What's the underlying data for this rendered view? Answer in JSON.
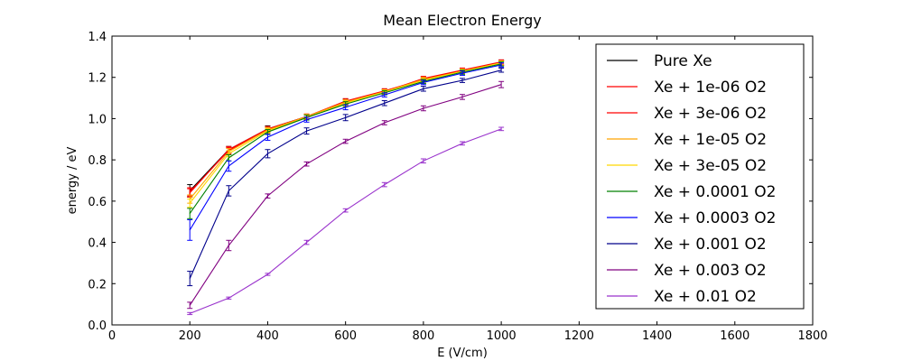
{
  "chart_data": {
    "type": "line",
    "title": "Mean Electron Energy",
    "xlabel": "E (V/cm)",
    "ylabel": "energy / eV",
    "xlim": [
      0,
      1800
    ],
    "ylim": [
      0.0,
      1.4
    ],
    "xticks": [
      "0",
      "200",
      "400",
      "600",
      "800",
      "1000",
      "1200",
      "1400",
      "1600",
      "1800"
    ],
    "yticks": [
      "0.0",
      "0.2",
      "0.4",
      "0.6",
      "0.8",
      "1.0",
      "1.2",
      "1.4"
    ],
    "grid": false,
    "legend_position": "top-right",
    "x": [
      200,
      300,
      400,
      500,
      600,
      700,
      800,
      900,
      1000
    ],
    "series": [
      {
        "name": "Pure Xe",
        "color": "#000000",
        "values": [
          0.65,
          0.85,
          0.95,
          1.01,
          1.08,
          1.13,
          1.19,
          1.23,
          1.27
        ],
        "errors": [
          0.03,
          0.015,
          0.015,
          0.012,
          0.015,
          0.012,
          0.012,
          0.012,
          0.012
        ]
      },
      {
        "name": "Xe + 1e-06 O2",
        "color": "#ff0000",
        "values": [
          0.64,
          0.85,
          0.95,
          1.01,
          1.08,
          1.13,
          1.195,
          1.235,
          1.27
        ],
        "errors": [
          0.02,
          0.015,
          0.012,
          0.012,
          0.012,
          0.01,
          0.01,
          0.01,
          0.01
        ]
      },
      {
        "name": "Xe + 3e-06 O2",
        "color": "#ff0000",
        "values": [
          0.645,
          0.845,
          0.945,
          1.01,
          1.085,
          1.135,
          1.19,
          1.235,
          1.275
        ],
        "errors": [
          0.02,
          0.015,
          0.012,
          0.012,
          0.012,
          0.01,
          0.01,
          0.01,
          0.01
        ]
      },
      {
        "name": "Xe + 1e-05 O2",
        "color": "#ffa500",
        "values": [
          0.61,
          0.84,
          0.945,
          1.01,
          1.08,
          1.13,
          1.19,
          1.23,
          1.27
        ],
        "errors": [
          0.02,
          0.015,
          0.012,
          0.012,
          0.012,
          0.01,
          0.01,
          0.01,
          0.01
        ]
      },
      {
        "name": "Xe + 3e-05 O2",
        "color": "#ffd700",
        "values": [
          0.59,
          0.83,
          0.94,
          1.005,
          1.075,
          1.13,
          1.185,
          1.23,
          1.27
        ],
        "errors": [
          0.02,
          0.015,
          0.012,
          0.012,
          0.012,
          0.01,
          0.01,
          0.01,
          0.01
        ]
      },
      {
        "name": "Xe + 0.0001 O2",
        "color": "#008000",
        "values": [
          0.54,
          0.81,
          0.935,
          1.005,
          1.07,
          1.125,
          1.18,
          1.225,
          1.265
        ],
        "errors": [
          0.025,
          0.015,
          0.012,
          0.012,
          0.012,
          0.01,
          0.01,
          0.01,
          0.01
        ]
      },
      {
        "name": "Xe + 0.0003 O2",
        "color": "#0000ff",
        "values": [
          0.46,
          0.77,
          0.91,
          0.995,
          1.055,
          1.115,
          1.175,
          1.22,
          1.26
        ],
        "errors": [
          0.05,
          0.025,
          0.015,
          0.012,
          0.012,
          0.01,
          0.01,
          0.01,
          0.01
        ]
      },
      {
        "name": "Xe + 0.001 O2",
        "color": "#00008b",
        "values": [
          0.225,
          0.65,
          0.83,
          0.94,
          1.005,
          1.075,
          1.145,
          1.185,
          1.235
        ],
        "errors": [
          0.035,
          0.025,
          0.02,
          0.015,
          0.015,
          0.012,
          0.012,
          0.01,
          0.01
        ]
      },
      {
        "name": "Xe + 0.003 O2",
        "color": "#800080",
        "values": [
          0.095,
          0.385,
          0.625,
          0.78,
          0.89,
          0.98,
          1.05,
          1.105,
          1.165
        ],
        "errors": [
          0.015,
          0.025,
          0.01,
          0.01,
          0.01,
          0.01,
          0.012,
          0.012,
          0.015
        ]
      },
      {
        "name": "Xe + 0.01 O2",
        "color": "#9932cc",
        "values": [
          0.055,
          0.13,
          0.245,
          0.4,
          0.555,
          0.68,
          0.795,
          0.88,
          0.95
        ],
        "errors": [
          0.005,
          0.005,
          0.005,
          0.01,
          0.008,
          0.01,
          0.01,
          0.008,
          0.008
        ]
      }
    ]
  }
}
